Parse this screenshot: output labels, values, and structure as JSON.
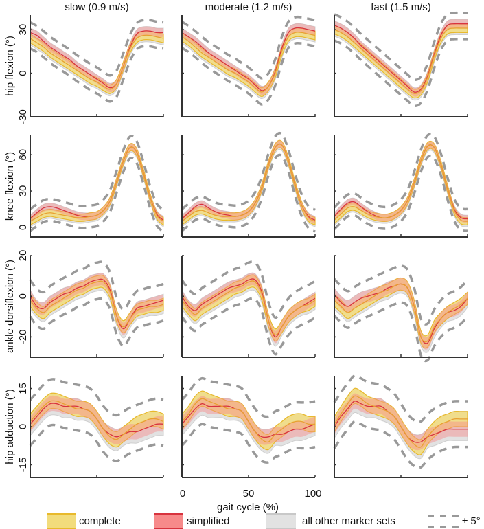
{
  "chart_data": {
    "type": "line",
    "columns": [
      "slow (0.9 m/s)",
      "moderate (1.2 m/s)",
      "fast (1.5 m/s)"
    ],
    "rows": [
      {
        "ylabel": "hip flexion (°)",
        "ylim": [
          -30,
          40
        ],
        "yticks": [
          -30,
          0,
          30
        ]
      },
      {
        "ylabel": "knee flexion (°)",
        "ylim": [
          -8,
          76
        ],
        "yticks": [
          0,
          30,
          60
        ]
      },
      {
        "ylabel": "ankle dorsiflexion (°)",
        "ylim": [
          -30,
          20
        ],
        "yticks": [
          -20,
          0,
          20
        ]
      },
      {
        "ylabel": "hip adduction (°)",
        "ylim": [
          -20,
          20
        ],
        "yticks": [
          -15,
          0,
          15
        ]
      }
    ],
    "xlabel": "gait cycle (%)",
    "xlim": [
      0,
      100
    ],
    "xticks": [
      0,
      50,
      100
    ],
    "x": [
      0,
      5,
      10,
      15,
      20,
      25,
      30,
      35,
      40,
      45,
      50,
      55,
      60,
      65,
      70,
      75,
      80,
      85,
      90,
      95,
      100
    ],
    "panels": [
      [
        {
          "complete": [
            24,
            21,
            18,
            14,
            11,
            8,
            5,
            2,
            -1,
            -4,
            -6,
            -9,
            -11,
            -7,
            5,
            17,
            24,
            26,
            26,
            25,
            24
          ],
          "simplified": [
            28,
            26,
            22,
            18,
            15,
            12,
            9,
            5,
            2,
            -1,
            -4,
            -7,
            -10,
            -7,
            5,
            18,
            27,
            29,
            29,
            28,
            28
          ]
        },
        {
          "complete": [
            25,
            22,
            18,
            14,
            11,
            8,
            5,
            2,
            0,
            -3,
            -6,
            -10,
            -13,
            -9,
            0,
            15,
            25,
            28,
            28,
            27,
            26
          ],
          "simplified": [
            28,
            25,
            22,
            18,
            14,
            11,
            8,
            5,
            2,
            -1,
            -4,
            -8,
            -12,
            -9,
            1,
            17,
            28,
            31,
            31,
            30,
            29
          ]
        },
        {
          "complete": [
            30,
            28,
            25,
            21,
            17,
            13,
            9,
            5,
            1,
            -3,
            -7,
            -11,
            -14,
            -12,
            -3,
            12,
            24,
            30,
            31,
            31,
            31
          ],
          "simplified": [
            33,
            31,
            28,
            24,
            19,
            15,
            11,
            7,
            3,
            -1,
            -5,
            -9,
            -13,
            -11,
            -2,
            13,
            26,
            33,
            34,
            34,
            34
          ]
        }
      ],
      [
        {
          "complete": [
            5,
            8,
            11,
            12,
            11,
            10,
            9,
            8,
            8,
            9,
            10,
            14,
            22,
            38,
            55,
            66,
            62,
            45,
            25,
            10,
            5
          ],
          "simplified": [
            7,
            12,
            16,
            17,
            16,
            14,
            12,
            10,
            9,
            9,
            10,
            14,
            22,
            38,
            55,
            66,
            62,
            45,
            25,
            11,
            6
          ]
        },
        {
          "complete": [
            5,
            9,
            13,
            14,
            12,
            10,
            9,
            9,
            9,
            10,
            13,
            20,
            33,
            52,
            66,
            68,
            55,
            35,
            18,
            8,
            5
          ],
          "simplified": [
            7,
            12,
            17,
            19,
            16,
            13,
            11,
            10,
            9,
            10,
            13,
            20,
            33,
            52,
            66,
            68,
            55,
            35,
            18,
            9,
            6
          ]
        },
        {
          "complete": [
            6,
            11,
            16,
            17,
            14,
            11,
            9,
            8,
            8,
            10,
            14,
            22,
            37,
            55,
            67,
            66,
            52,
            32,
            14,
            6,
            5
          ],
          "simplified": [
            9,
            15,
            20,
            21,
            17,
            13,
            10,
            8,
            8,
            10,
            14,
            22,
            37,
            55,
            67,
            66,
            52,
            32,
            15,
            8,
            7
          ]
        }
      ],
      [
        {
          "complete": [
            -2,
            -6,
            -8,
            -5,
            -3,
            -1,
            1,
            3,
            4,
            6,
            7,
            7,
            2,
            -10,
            -15,
            -11,
            -7,
            -6,
            -5,
            -5,
            -4
          ],
          "simplified": [
            0,
            -5,
            -6,
            -3,
            -1,
            1,
            2,
            4,
            5,
            7,
            8,
            8,
            3,
            -10,
            -16,
            -11,
            -6,
            -5,
            -4,
            -3,
            -2
          ]
        },
        {
          "complete": [
            -2,
            -6,
            -9,
            -6,
            -4,
            -2,
            0,
            2,
            4,
            5,
            7,
            7,
            1,
            -12,
            -19,
            -15,
            -10,
            -7,
            -5,
            -4,
            -2
          ],
          "simplified": [
            0,
            -5,
            -7,
            -4,
            -2,
            0,
            2,
            4,
            5,
            6,
            8,
            8,
            2,
            -12,
            -20,
            -15,
            -10,
            -7,
            -5,
            -3,
            -1
          ]
        },
        {
          "complete": [
            -2,
            -5,
            -8,
            -6,
            -4,
            -2,
            0,
            2,
            3,
            5,
            6,
            4,
            -5,
            -20,
            -22,
            -15,
            -11,
            -8,
            -6,
            -4,
            -1
          ],
          "simplified": [
            1,
            -3,
            -5,
            -3,
            -1,
            0,
            1,
            2,
            4,
            5,
            6,
            4,
            -5,
            -20,
            -23,
            -16,
            -11,
            -8,
            -7,
            -5,
            -1
          ]
        }
      ],
      [
        {
          "complete": [
            2,
            5,
            8,
            10,
            10,
            9,
            8,
            7,
            7,
            6,
            3,
            -1,
            -4,
            -5,
            -3,
            -1,
            1,
            2,
            3,
            3,
            2
          ],
          "simplified": [
            1,
            4,
            7,
            9,
            9,
            8,
            8,
            8,
            7,
            6,
            3,
            -1,
            -3,
            -4,
            -3,
            -2,
            -2,
            -1,
            0,
            1,
            1
          ]
        },
        {
          "complete": [
            2,
            5,
            9,
            11,
            10,
            9,
            8,
            7,
            7,
            6,
            2,
            -2,
            -5,
            -6,
            -3,
            -1,
            1,
            2,
            2,
            1,
            1
          ],
          "simplified": [
            1,
            4,
            7,
            9,
            8,
            8,
            8,
            8,
            7,
            6,
            2,
            -2,
            -4,
            -4,
            -3,
            -3,
            -2,
            -1,
            -1,
            0,
            1
          ]
        },
        {
          "complete": [
            1,
            5,
            9,
            12,
            11,
            9,
            8,
            7,
            6,
            4,
            0,
            -4,
            -7,
            -8,
            -4,
            -1,
            1,
            2,
            3,
            3,
            3
          ],
          "simplified": [
            0,
            4,
            7,
            10,
            9,
            8,
            8,
            8,
            6,
            4,
            0,
            -4,
            -6,
            -6,
            -4,
            -3,
            -2,
            -1,
            -1,
            -1,
            -1
          ]
        }
      ]
    ],
    "tolerance_deg": 5,
    "legend": [
      {
        "label": "complete",
        "color": "#e8b92c",
        "fill": "#f2dc7c"
      },
      {
        "label": "simplified",
        "color": "#d8333e",
        "fill": "#f78a8a"
      },
      {
        "label": "all other marker sets",
        "color": "#c8c8c8",
        "fill": "#e2e2e2"
      },
      {
        "label": "± 5°",
        "color": "#999999"
      }
    ],
    "legend_position": "bottom"
  }
}
